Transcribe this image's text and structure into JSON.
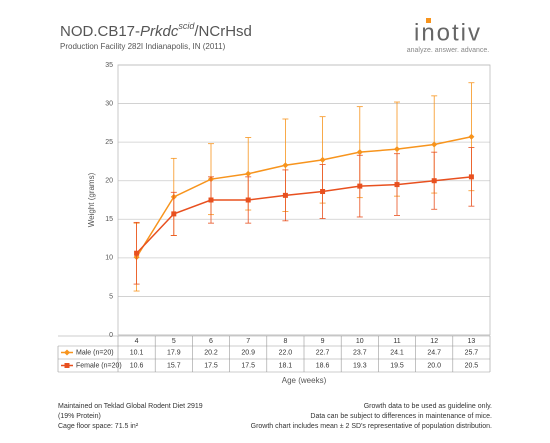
{
  "header": {
    "title_parts": [
      "NOD.CB17-",
      "Prkdc",
      "scid",
      "/NCrHsd"
    ],
    "subtitle": "Production Facility 282I Indianapolis, IN (2011)"
  },
  "logo": {
    "name": "inotiv",
    "tagline": "analyze. answer. advance."
  },
  "chart_data": {
    "type": "line",
    "x_label": "Age (weeks)",
    "y_label": "Weight (grams)",
    "categories": [
      "4",
      "5",
      "6",
      "7",
      "8",
      "9",
      "10",
      "11",
      "12",
      "13"
    ],
    "ylim": [
      0,
      35
    ],
    "yticks": [
      0,
      5,
      10,
      15,
      20,
      25,
      30,
      35
    ],
    "grid": true,
    "series": [
      {
        "name": "Male (n=20)",
        "color": "#f7941d",
        "marker": "diamond",
        "values": [
          10.1,
          17.9,
          20.2,
          20.9,
          22.0,
          22.7,
          23.7,
          24.1,
          24.7,
          25.7
        ],
        "value_labels": [
          "10.1",
          "17.9",
          "20.2",
          "20.9",
          "22.0",
          "22.7",
          "23.7",
          "24.1",
          "24.7",
          "25.7"
        ],
        "errors": [
          4.4,
          5.0,
          4.6,
          4.7,
          6.0,
          5.6,
          5.9,
          6.1,
          6.3,
          7.0
        ]
      },
      {
        "name": "Female (n=20)",
        "color": "#e8501f",
        "marker": "square",
        "values": [
          10.6,
          15.7,
          17.5,
          17.5,
          18.1,
          18.6,
          19.3,
          19.5,
          20.0,
          20.5
        ],
        "value_labels": [
          "10.6",
          "15.7",
          "17.5",
          "17.5",
          "18.1",
          "18.6",
          "19.3",
          "19.5",
          "20.0",
          "20.5"
        ],
        "errors": [
          4.0,
          2.8,
          3.0,
          3.0,
          3.3,
          3.5,
          4.0,
          4.0,
          3.7,
          3.8
        ]
      }
    ]
  },
  "notes": {
    "left": [
      "Maintained on Teklad Global Rodent Diet 2919",
      "(19% Protein)",
      "Cage floor space: 71.5 in²"
    ],
    "right": [
      "Growth data to be used as guideline only.",
      "Data can be subject to differences in maintenance of mice.",
      "Growth chart includes mean ± 2 SD's representative of population distribution."
    ]
  }
}
